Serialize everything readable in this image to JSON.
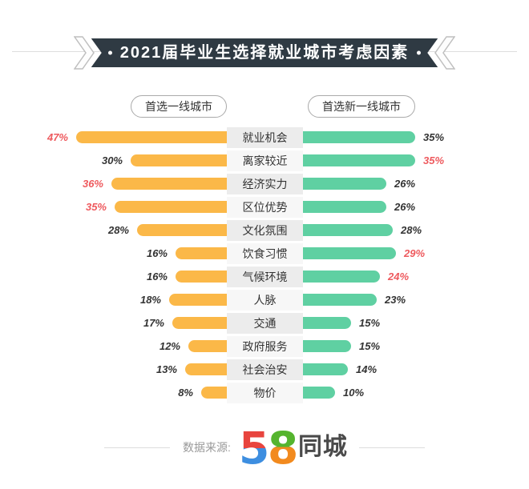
{
  "title": "2021届毕业生选择就业城市考虑因素",
  "legend": {
    "left_label": "首选一线城市",
    "right_label": "首选新一线城市"
  },
  "chart_data": {
    "type": "bar",
    "layout": "horizontal-bidirectional",
    "title": "2021届毕业生选择就业城市考虑因素",
    "value_unit": "%",
    "value_range": [
      0,
      47
    ],
    "categories": [
      "就业机会",
      "离家较近",
      "经济实力",
      "区位优势",
      "文化氛围",
      "饮食习惯",
      "气候环境",
      "人脉",
      "交通",
      "政府服务",
      "社会治安",
      "物价"
    ],
    "series": [
      {
        "name": "首选一线城市",
        "direction": "left",
        "color": "#FBB848",
        "values": [
          47,
          30,
          36,
          35,
          28,
          16,
          16,
          18,
          17,
          12,
          13,
          8
        ],
        "highlight": [
          true,
          false,
          true,
          true,
          false,
          false,
          false,
          false,
          false,
          false,
          false,
          false
        ]
      },
      {
        "name": "首选新一线城市",
        "direction": "right",
        "color": "#5FD0A2",
        "values": [
          35,
          35,
          26,
          26,
          28,
          29,
          24,
          23,
          15,
          15,
          14,
          10
        ],
        "highlight": [
          false,
          true,
          false,
          false,
          false,
          true,
          true,
          false,
          false,
          false,
          false,
          false
        ]
      }
    ],
    "label_format": "{value}%",
    "highlight_color": "#EE5A5E"
  },
  "footer": {
    "source_label": "数据来源:",
    "brand_digit_5": "5",
    "brand_digit_8": "8",
    "brand_text": "同城"
  },
  "colors": {
    "banner_bg": "#2f3a43",
    "banner_text": "#ffffff",
    "bar_left": "#FBB848",
    "bar_right": "#5FD0A2",
    "value_normal": "#333333",
    "value_highlight": "#EE5A5E",
    "category_bg_odd": "#ececec",
    "category_bg_even": "#f7f7f7",
    "line": "#dddddd",
    "logo_red": "#E8443E",
    "logo_blue": "#3D8EE0",
    "logo_green": "#55B42E",
    "logo_orange": "#F28A1E",
    "logo_text": "#4a4a4a"
  }
}
